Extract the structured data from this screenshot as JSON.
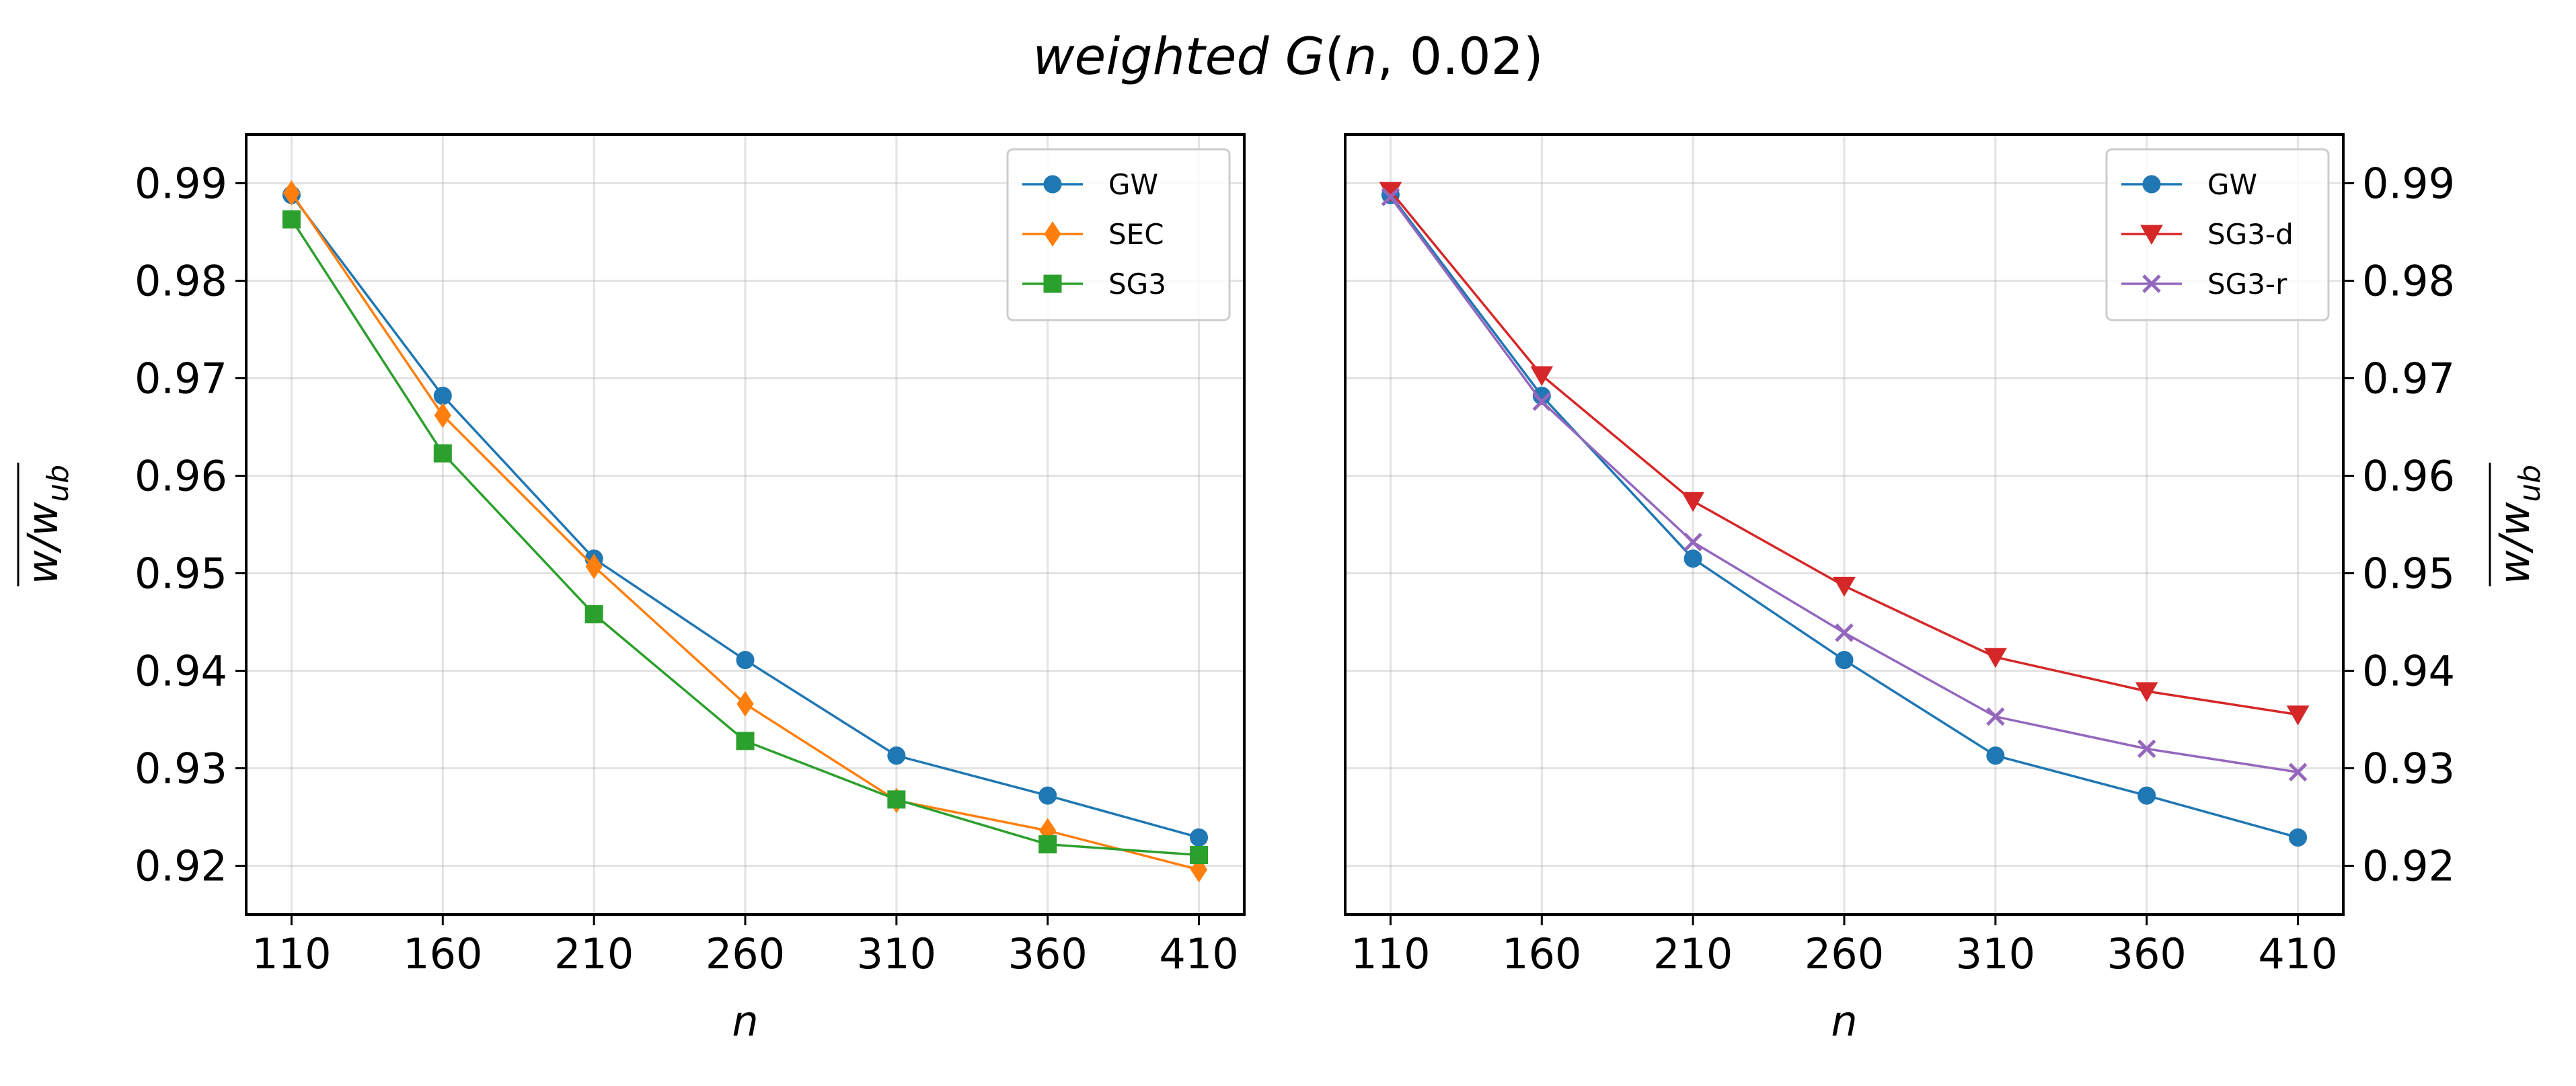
{
  "figure_title": "weighted G(n, 0.02)",
  "chart_data": [
    {
      "type": "line",
      "panel": "left",
      "title": "",
      "xlabel": "n",
      "ylabel": "w/w_ub (mean)",
      "categories": [
        "110",
        "160",
        "210",
        "260",
        "310",
        "360",
        "410"
      ],
      "x": [
        110,
        160,
        210,
        260,
        310,
        360,
        410
      ],
      "xlim": [
        95,
        425
      ],
      "ylim": [
        0.915,
        0.995
      ],
      "yticks": [
        0.92,
        0.93,
        0.94,
        0.95,
        0.96,
        0.97,
        0.98,
        0.99
      ],
      "ytick_labels": [
        "0.92",
        "0.93",
        "0.94",
        "0.95",
        "0.96",
        "0.97",
        "0.98",
        "0.99"
      ],
      "yaxis_side": "left",
      "grid": true,
      "legend_position": "top-right",
      "series": [
        {
          "name": "GW",
          "color": "#1f77b4",
          "marker": "circle",
          "values": [
            0.9888,
            0.9682,
            0.9515,
            0.9411,
            0.9313,
            0.9272,
            0.9229
          ]
        },
        {
          "name": "SEC",
          "color": "#ff7f0e",
          "marker": "diamond",
          "values": [
            0.989,
            0.9662,
            0.9507,
            0.9366,
            0.9267,
            0.9236,
            0.9196
          ]
        },
        {
          "name": "SG3",
          "color": "#2ca02c",
          "marker": "square",
          "values": [
            0.9863,
            0.9623,
            0.9458,
            0.9328,
            0.9268,
            0.9222,
            0.9211
          ]
        }
      ]
    },
    {
      "type": "line",
      "panel": "right",
      "title": "",
      "xlabel": "n",
      "ylabel": "w/w_ub (mean)",
      "categories": [
        "110",
        "160",
        "210",
        "260",
        "310",
        "360",
        "410"
      ],
      "x": [
        110,
        160,
        210,
        260,
        310,
        360,
        410
      ],
      "xlim": [
        95,
        425
      ],
      "ylim": [
        0.915,
        0.995
      ],
      "yticks": [
        0.92,
        0.93,
        0.94,
        0.95,
        0.96,
        0.97,
        0.98,
        0.99
      ],
      "ytick_labels": [
        "0.92",
        "0.93",
        "0.94",
        "0.95",
        "0.96",
        "0.97",
        "0.98",
        "0.99"
      ],
      "yaxis_side": "right",
      "grid": true,
      "legend_position": "top-right",
      "series": [
        {
          "name": "GW",
          "color": "#1f77b4",
          "marker": "circle",
          "values": [
            0.9888,
            0.9682,
            0.9515,
            0.9411,
            0.9313,
            0.9272,
            0.9229
          ]
        },
        {
          "name": "SG3-d",
          "color": "#d62728",
          "marker": "triangle-down",
          "values": [
            0.9892,
            0.9703,
            0.9574,
            0.9487,
            0.9414,
            0.9379,
            0.9355
          ]
        },
        {
          "name": "SG3-r",
          "color": "#9467bd",
          "marker": "x",
          "values": [
            0.9886,
            0.9676,
            0.9532,
            0.9439,
            0.9353,
            0.932,
            0.9296
          ]
        }
      ]
    }
  ]
}
